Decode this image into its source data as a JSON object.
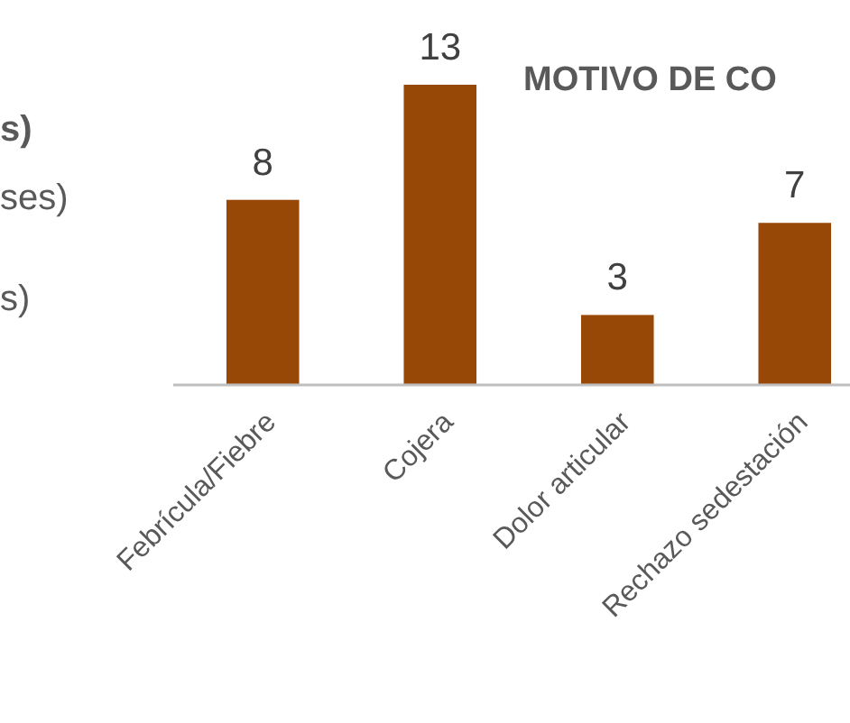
{
  "chart_data": {
    "type": "bar",
    "title": "MOTIVO DE CO",
    "categories": [
      "Febrícula/Fiebre",
      "Cojera",
      "Dolor articular",
      "Rechazo sedestación"
    ],
    "values": [
      8,
      13,
      3,
      7
    ],
    "color": "#974706",
    "data_labels": true,
    "annotations": [
      "s)",
      "ses)",
      "s)"
    ]
  }
}
